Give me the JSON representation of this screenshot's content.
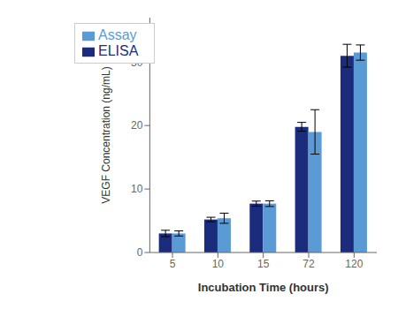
{
  "chart_data": {
    "type": "bar",
    "categories": [
      "5",
      "10",
      "15",
      "72",
      "120"
    ],
    "xlabel": "Incubation Time (hours)",
    "ylabel": "VEGF Concentration (ng/mL)",
    "series": [
      {
        "name": "ELISA",
        "color": "#1c2c7c",
        "values": [
          3.0,
          5.2,
          7.7,
          19.8,
          31.0
        ],
        "errors": [
          0.5,
          0.35,
          0.4,
          0.7,
          1.8
        ]
      },
      {
        "name": "Assay",
        "color": "#5b9bd5",
        "values": [
          3.0,
          5.4,
          7.7,
          19.0,
          31.5
        ],
        "errors": [
          0.4,
          0.8,
          0.45,
          3.5,
          1.2
        ]
      }
    ],
    "ylim": [
      0,
      37
    ],
    "yticks": [
      0,
      10,
      20,
      30
    ],
    "grid": false,
    "legend": "upper left"
  }
}
